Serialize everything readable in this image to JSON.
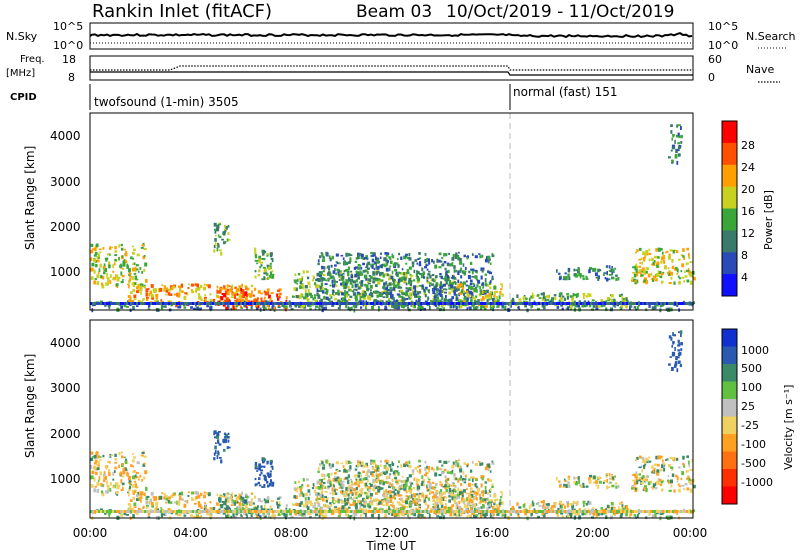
{
  "header": {
    "station": "Rankin Inlet (fitACF)",
    "beam": "Beam 03",
    "date_range": "10/Oct/2019 - 11/Oct/2019"
  },
  "strip1": {
    "left_label": "N.Sky",
    "right_label": "N.Search",
    "left_ticks": [
      "10^5",
      "10^0"
    ],
    "right_ticks": [
      "10^5",
      "10^0"
    ]
  },
  "strip2": {
    "left_label_line1": "Freq.",
    "left_label_line2": "[MHz]",
    "right_label": "Nave",
    "left_ticks": [
      "18",
      "8"
    ],
    "right_ticks": [
      "60",
      "0"
    ]
  },
  "cpid": {
    "label": "CPID",
    "mode1": "twofsound (1-min) 3505",
    "mode2": "normal (fast) 151"
  },
  "xaxis": {
    "label": "Time UT",
    "ticks": [
      "00:00",
      "04:00",
      "08:00",
      "12:00",
      "16:00",
      "20:00",
      "00:00"
    ]
  },
  "panel_power": {
    "ylabel": "Slant Range [km]",
    "yticks": [
      "4000",
      "3000",
      "2000",
      "1000"
    ],
    "colorbar_label": "Power [dB]",
    "colorbar_ticks": [
      "28",
      "24",
      "20",
      "16",
      "12",
      "8",
      "4"
    ],
    "colors": [
      "#1010ff",
      "#2a4ab8",
      "#3a7a6a",
      "#3aa63a",
      "#c8d020",
      "#ffa000",
      "#ff5000",
      "#ff0000"
    ]
  },
  "panel_velocity": {
    "ylabel": "Slant Range [km]",
    "yticks": [
      "4000",
      "3000",
      "2000",
      "1000"
    ],
    "colorbar_label": "Velocity [m s⁻¹]",
    "colorbar_ticks": [
      "1000",
      "500",
      "100",
      "25",
      "-25",
      "-100",
      "-500",
      "-1000"
    ],
    "colors": [
      "#1030d0",
      "#2a5ab0",
      "#3a8a6a",
      "#60c040",
      "#c0c0c0",
      "#f0d060",
      "#ffa020",
      "#ff7010",
      "#ff3000",
      "#ff0000"
    ]
  },
  "chart_data": {
    "type": "heatmap",
    "xlabel": "Time UT",
    "ylabel": "Slant Range [km]",
    "x_range_hours": [
      0,
      24
    ],
    "y_range_km": [
      200,
      4600
    ],
    "mode_change_time_hours": 16.7,
    "regions": [
      {
        "t0": 0.0,
        "t1": 2.2,
        "r0": 750,
        "r1": 1700,
        "power_db": 16,
        "velocity": -100
      },
      {
        "t0": 0.0,
        "t1": 24.0,
        "r0": 230,
        "r1": 420,
        "power_db": 8,
        "velocity": 25
      },
      {
        "t0": 1.5,
        "t1": 6.5,
        "r0": 350,
        "r1": 800,
        "power_db": 20,
        "velocity": -100
      },
      {
        "t0": 4.9,
        "t1": 5.5,
        "r0": 1500,
        "r1": 2200,
        "power_db": 12,
        "velocity": 500
      },
      {
        "t0": 5.0,
        "t1": 7.8,
        "r0": 250,
        "r1": 700,
        "power_db": 24,
        "velocity": 100
      },
      {
        "t0": 6.5,
        "t1": 7.3,
        "r0": 900,
        "r1": 1650,
        "power_db": 12,
        "velocity": 500
      },
      {
        "t0": 8.0,
        "t1": 14.5,
        "r0": 300,
        "r1": 1100,
        "power_db": 12,
        "velocity": -100
      },
      {
        "t0": 9.0,
        "t1": 16.0,
        "r0": 400,
        "r1": 1500,
        "power_db": 8,
        "velocity": -25
      },
      {
        "t0": 14.5,
        "t1": 16.4,
        "r0": 300,
        "r1": 800,
        "power_db": 16,
        "velocity": -100
      },
      {
        "t0": 16.7,
        "t1": 21.5,
        "r0": 300,
        "r1": 600,
        "power_db": 12,
        "velocity": -100
      },
      {
        "t0": 18.5,
        "t1": 21.0,
        "r0": 900,
        "r1": 1200,
        "power_db": 8,
        "velocity": -100
      },
      {
        "t0": 21.5,
        "t1": 24.0,
        "r0": 800,
        "r1": 1600,
        "power_db": 16,
        "velocity": -100
      },
      {
        "t0": 23.0,
        "t1": 23.5,
        "r0": 3500,
        "r1": 4400,
        "power_db": 8,
        "velocity": 500
      }
    ]
  }
}
